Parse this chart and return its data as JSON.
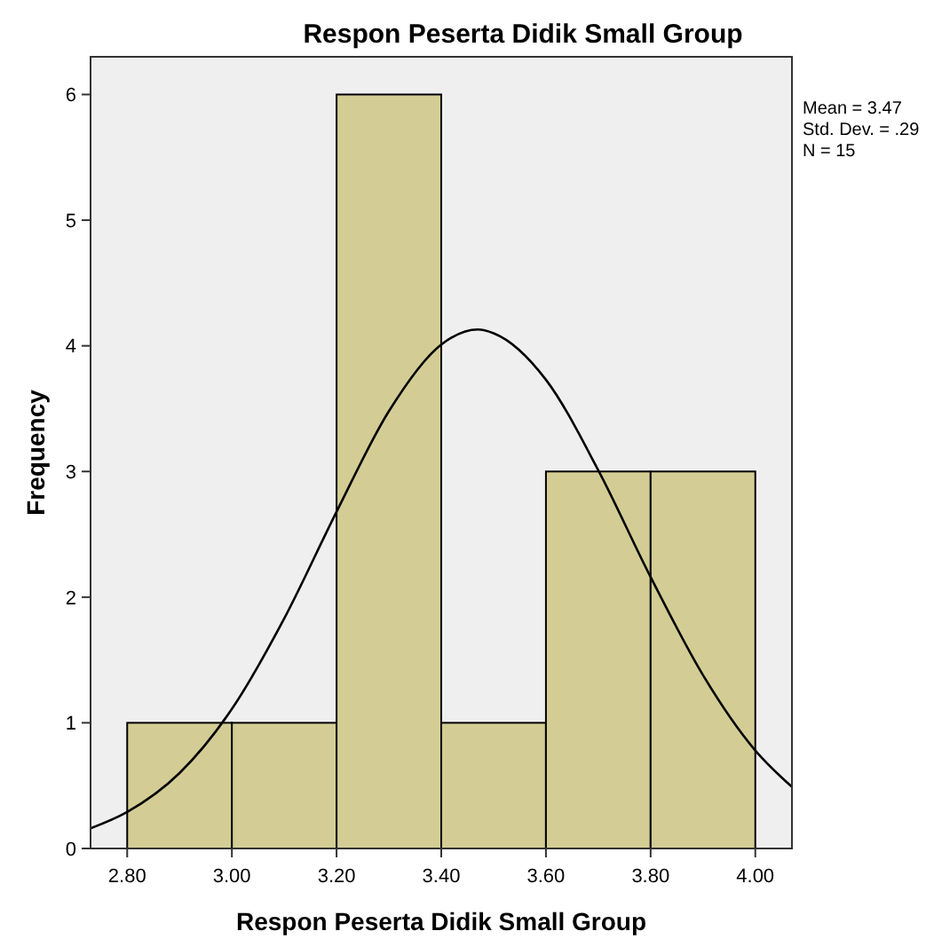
{
  "chart_data": {
    "type": "histogram",
    "title": "Respon Peserta Didik Small Group",
    "xlabel": "Respon Peserta Didik Small Group",
    "ylabel": "Frequency",
    "bins": [
      2.8,
      3.0,
      3.2,
      3.4,
      3.6,
      3.8,
      4.0
    ],
    "values": [
      1,
      1,
      6,
      1,
      3,
      3
    ],
    "color": "#d3cd95",
    "series": [
      {
        "type": "line",
        "color": "#000000",
        "x": [
          2.73,
          2.8,
          2.9,
          3.0,
          3.1,
          3.2,
          3.3,
          3.4,
          3.47,
          3.5,
          3.6,
          3.7,
          3.8,
          3.9,
          4.0,
          4.07
        ],
        "values": [
          0.16,
          0.29,
          0.6,
          1.11,
          1.83,
          2.68,
          3.48,
          4.01,
          4.13,
          4.1,
          3.73,
          3.01,
          2.16,
          1.38,
          0.78,
          0.49
        ]
      }
    ],
    "xlim": [
      2.73,
      4.07
    ],
    "xticks": [
      {
        "value": 2.8,
        "label": "2.80"
      },
      {
        "value": 3.0,
        "label": "3.00"
      },
      {
        "value": 3.2,
        "label": "3.20"
      },
      {
        "value": 3.4,
        "label": "3.40"
      },
      {
        "value": 3.6,
        "label": "3.60"
      },
      {
        "value": 3.8,
        "label": "3.80"
      },
      {
        "value": 4.0,
        "label": "4.00"
      }
    ],
    "ylim": [
      0,
      6.3
    ],
    "yticks": [
      0,
      1,
      2,
      3,
      4,
      5,
      6
    ],
    "marker": "none",
    "line_style": "solid",
    "grid": false,
    "annotations": [
      "Mean = 3.47",
      "Std. Dev. = .29",
      "N = 15"
    ]
  }
}
